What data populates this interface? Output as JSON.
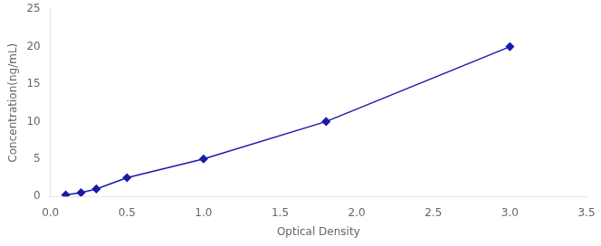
{
  "chart_data": {
    "type": "line",
    "x": [
      0.1,
      0.2,
      0.3,
      0.5,
      1.0,
      1.8,
      3.0
    ],
    "values": [
      0.2,
      0.5,
      1.0,
      2.5,
      5.0,
      10.0,
      20.0
    ],
    "color": "#1a1aaa",
    "marker": "diamond",
    "line_style": "solid",
    "xlabel": "Optical Density",
    "ylabel": "Concentration(ng/mL)",
    "xlim": [
      0,
      3.5
    ],
    "ylim": [
      0,
      25
    ],
    "xticks": [
      {
        "value": 0,
        "label": "0.0"
      },
      0.5,
      {
        "value": 1,
        "label": "1.0"
      },
      1.5,
      {
        "value": 2,
        "label": "2.0"
      },
      2.5,
      {
        "value": 3,
        "label": "3.0"
      },
      3.5
    ],
    "yticks": [
      0,
      5,
      10,
      15,
      20,
      25
    ],
    "grid": false
  }
}
